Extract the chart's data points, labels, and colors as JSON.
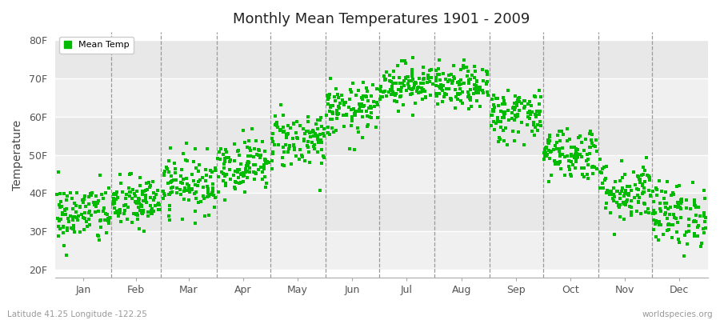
{
  "title": "Monthly Mean Temperatures 1901 - 2009",
  "ylabel": "Temperature",
  "xlabel_months": [
    "Jan",
    "Feb",
    "Mar",
    "Apr",
    "May",
    "Jun",
    "Jul",
    "Aug",
    "Sep",
    "Oct",
    "Nov",
    "Dec"
  ],
  "ytick_labels": [
    "20F",
    "30F",
    "40F",
    "50F",
    "60F",
    "70F",
    "80F"
  ],
  "ytick_values": [
    20,
    30,
    40,
    50,
    60,
    70,
    80
  ],
  "ylim": [
    18,
    82
  ],
  "background_color": "#ffffff",
  "plot_bg_color": "#ffffff",
  "band_colors": [
    "#f0f0f0",
    "#e8e8e8"
  ],
  "dot_color": "#00bb00",
  "dot_size": 6,
  "legend_label": "Mean Temp",
  "footer_left": "Latitude 41.25 Longitude -122.25",
  "footer_right": "worldspecies.org",
  "monthly_means": [
    34.5,
    37.5,
    42.5,
    47.5,
    54.0,
    61.5,
    68.5,
    67.5,
    60.5,
    50.5,
    40.5,
    34.5
  ],
  "monthly_std": [
    4.0,
    3.5,
    3.8,
    3.5,
    3.8,
    3.5,
    2.8,
    2.8,
    3.5,
    3.5,
    4.0,
    4.2
  ],
  "n_years": 109,
  "seed": 42,
  "month_starts": [
    1,
    32,
    60,
    91,
    121,
    152,
    182,
    213,
    244,
    274,
    305,
    335
  ],
  "month_ends": [
    31,
    59,
    90,
    120,
    151,
    181,
    212,
    243,
    273,
    304,
    334,
    365
  ]
}
